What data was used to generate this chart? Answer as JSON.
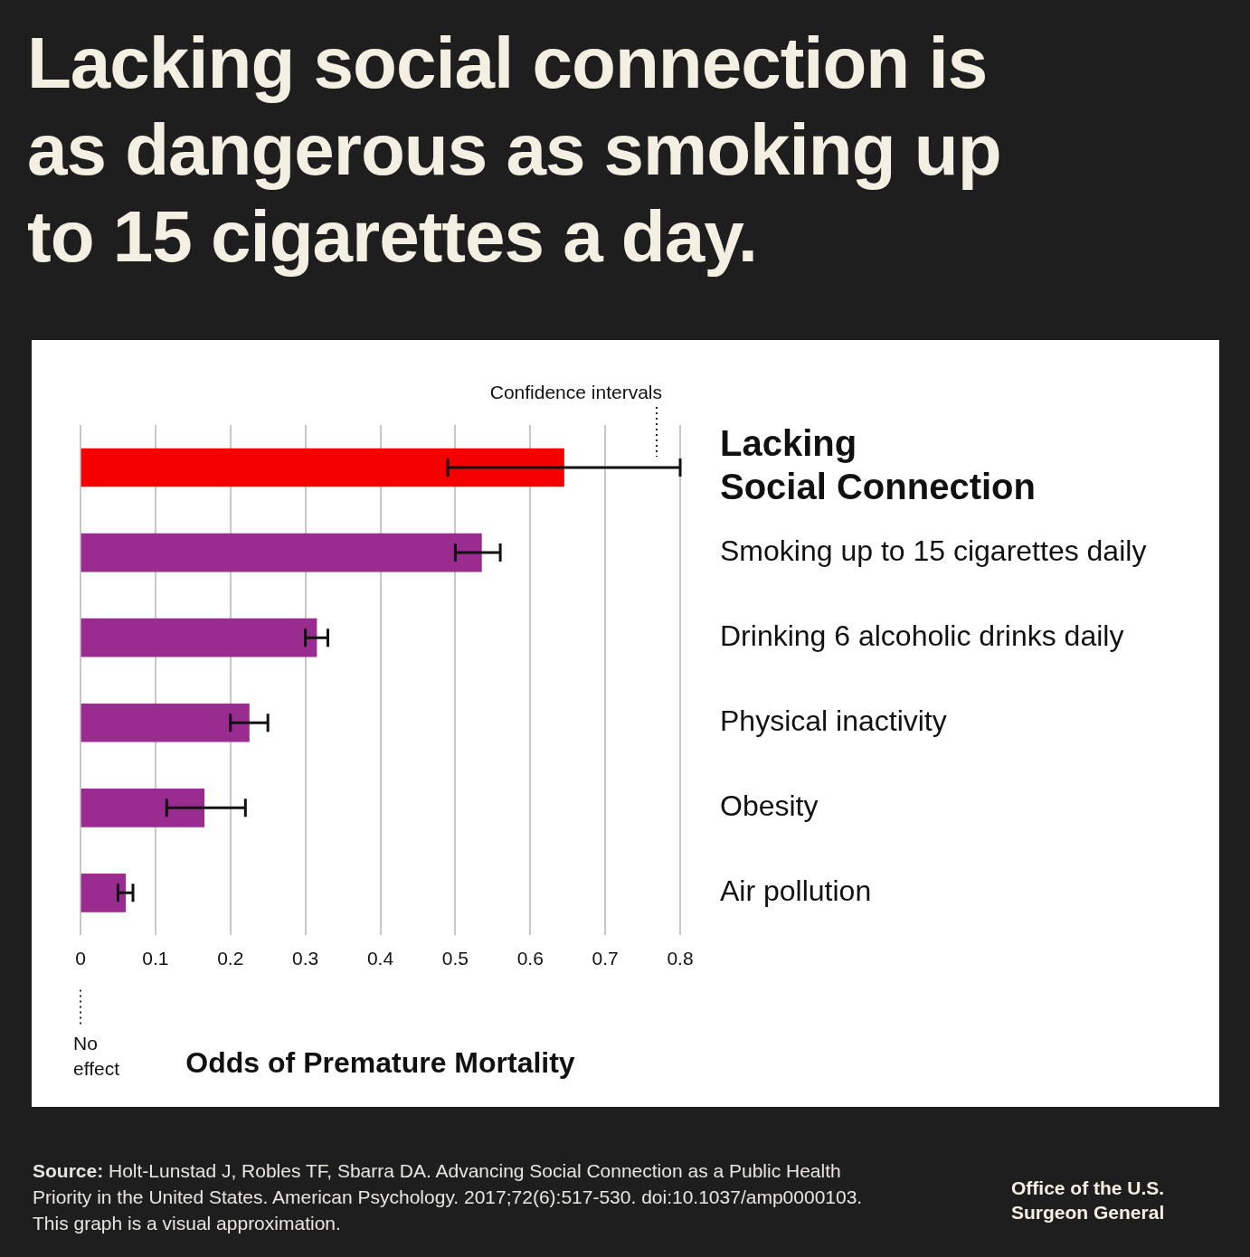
{
  "chart_data": {
    "type": "bar",
    "orientation": "horizontal",
    "title": "Lacking social connection is as dangerous as smoking up to 15 cigarettes a day.",
    "xlabel": "Odds of Premature Mortality",
    "categories": [
      "Lacking Social Connection",
      "Smoking up to 15 cigarettes daily",
      "Drinking 6 alcoholic drinks daily",
      "Physical inactivity",
      "Obesity",
      "Air pollution"
    ],
    "values": [
      0.645,
      0.535,
      0.315,
      0.225,
      0.165,
      0.06
    ],
    "colors": [
      "#f50000",
      "#9b2c8f",
      "#9b2c8f",
      "#9b2c8f",
      "#9b2c8f",
      "#9b2c8f"
    ],
    "errors": [
      [
        0.49,
        0.8
      ],
      [
        0.5,
        0.56
      ],
      [
        0.3,
        0.33
      ],
      [
        0.2,
        0.25
      ],
      [
        0.115,
        0.22
      ],
      [
        0.05,
        0.07
      ]
    ],
    "xlim": [
      0,
      0.8
    ],
    "xticks": [
      0,
      0.1,
      0.2,
      0.3,
      0.4,
      0.5,
      0.6,
      0.7,
      0.8
    ],
    "grid": "x",
    "legend": false,
    "annotations": [
      "Confidence intervals",
      "No effect",
      "Source: Holt-Lunstad J, Robles TF, Sbarra DA. Advancing Social Connection as a Public Health Priority in the United States. American Psychology. 2017;72(6):517-530. doi:10.1037/amp0000103. This graph is a visual approximation.",
      "Office of the U.S. Surgeon General"
    ]
  }
}
